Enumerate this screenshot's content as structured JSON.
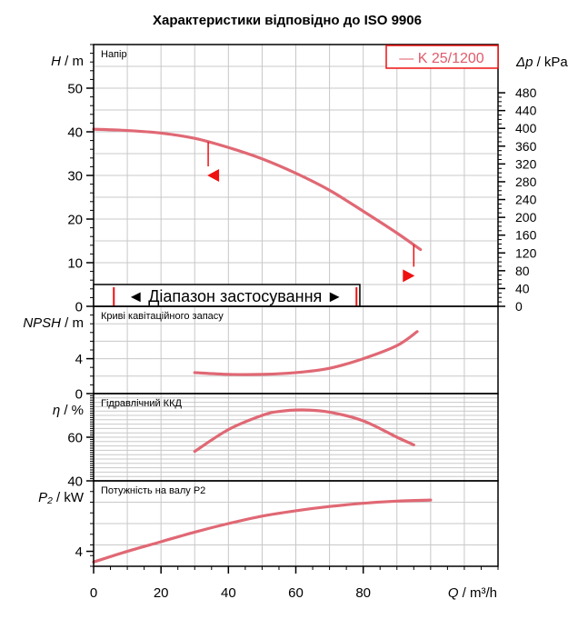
{
  "title": "Характеристики відповідно до ISO 9906",
  "legend": {
    "label": "— K 25/1200"
  },
  "colors": {
    "curve": "#e06874",
    "marker": "#ee1111",
    "grid": "#c8c8c8",
    "frame": "#000000"
  },
  "range": {
    "label": "◄ Діапазон застосування ►",
    "q_min": 6,
    "q_max": 78
  },
  "x_axis": {
    "label_q": "Q",
    "label_unit": " / m³/h",
    "ticks": [
      0,
      20,
      40,
      60,
      80
    ],
    "range": [
      0,
      120
    ]
  },
  "chart_data": [
    {
      "type": "line",
      "panel": "head",
      "panel_label": "Напір",
      "ylabel_symbol": "H",
      "ylabel_unit": " / m",
      "ylim": [
        0,
        60
      ],
      "y_ticks": [
        0,
        10,
        20,
        30,
        40,
        50
      ],
      "right_axis": {
        "label_symbol": "Δp",
        "label_unit": " / kPa",
        "ticks": [
          0,
          40,
          80,
          120,
          160,
          200,
          240,
          280,
          320,
          360,
          400,
          440,
          480
        ]
      },
      "series": [
        {
          "name": "K 25/1200",
          "x": [
            0,
            10,
            20,
            30,
            40,
            50,
            60,
            70,
            80,
            90,
            97
          ],
          "y": [
            40.6,
            40.3,
            39.7,
            38.5,
            36.4,
            33.8,
            30.5,
            26.6,
            21.8,
            16.8,
            13.0
          ]
        }
      ],
      "markers": [
        {
          "x": 34,
          "y": 30
        },
        {
          "x": 95,
          "y": 7
        }
      ]
    },
    {
      "type": "line",
      "panel": "npsh",
      "panel_label": "Криві кавітаційного запасу",
      "ylabel_symbol": "NPSH",
      "ylabel_unit": " / m",
      "ylim": [
        0,
        10
      ],
      "y_ticks": [
        0,
        4
      ],
      "series": [
        {
          "name": "K 25/1200",
          "x": [
            30,
            40,
            50,
            60,
            70,
            80,
            90,
            96
          ],
          "y": [
            2.4,
            2.2,
            2.2,
            2.4,
            2.9,
            4.0,
            5.5,
            7.1
          ]
        }
      ]
    },
    {
      "type": "line",
      "panel": "efficiency",
      "panel_label": "Гідравлічний ККД",
      "ylabel_symbol": "η",
      "ylabel_unit": " / %",
      "ylim": [
        40,
        80
      ],
      "y_ticks": [
        40,
        60
      ],
      "series": [
        {
          "name": "K 25/1200",
          "x": [
            30,
            40,
            50,
            55,
            62,
            70,
            80,
            90,
            95
          ],
          "y": [
            53.5,
            63.5,
            70.0,
            71.8,
            72.5,
            71.5,
            67.5,
            60.0,
            56.5
          ]
        }
      ]
    },
    {
      "type": "line",
      "panel": "power",
      "panel_label": "Потужність на валу P2",
      "ylabel_symbol": "P₂",
      "ylabel_unit": " / kW",
      "ylim": [
        2.6,
        10.6
      ],
      "y_ticks": [
        4
      ],
      "series": [
        {
          "name": "K 25/1200",
          "x": [
            0,
            10,
            20,
            30,
            40,
            50,
            60,
            70,
            80,
            90,
            100
          ],
          "y": [
            3.0,
            4.0,
            4.9,
            5.8,
            6.6,
            7.3,
            7.8,
            8.2,
            8.5,
            8.7,
            8.8
          ]
        }
      ]
    }
  ]
}
